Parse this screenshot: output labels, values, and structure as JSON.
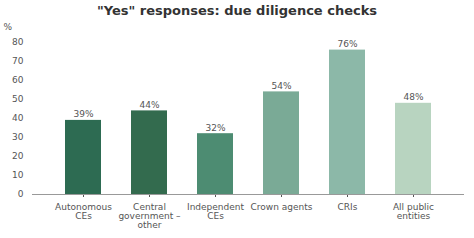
{
  "chart_data": {
    "type": "bar",
    "title": "\"Yes\" responses: due diligence checks",
    "ylabel": "%",
    "categories": [
      "Autonomous\nCEs",
      "Central\ngovernment –\nother",
      "Independent\nCEs",
      "Crown agents",
      "CRIs",
      "All public\nentities"
    ],
    "values": [
      39,
      44,
      32,
      54,
      76,
      48
    ],
    "value_labels": [
      "39%",
      "44%",
      "32%",
      "54%",
      "76%",
      "48%"
    ],
    "colors": [
      "#2d6b52",
      "#336b4e",
      "#4d8c72",
      "#7aaa96",
      "#8cb8a8",
      "#b8d4c0"
    ],
    "ylim": [
      0,
      80
    ],
    "yticks": [
      0,
      10,
      20,
      30,
      40,
      50,
      60,
      70,
      80
    ],
    "grid": false,
    "data_labels": true
  }
}
